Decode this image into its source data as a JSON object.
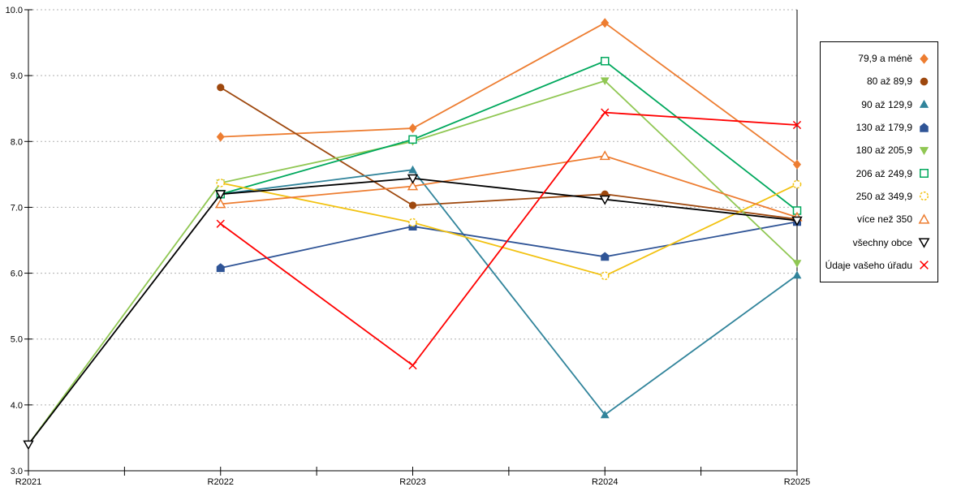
{
  "chart_data": {
    "type": "line",
    "title": "",
    "xlabel": "",
    "ylabel": "",
    "x_categories": [
      "R2021",
      "R2022",
      "R2023",
      "R2024",
      "R2025"
    ],
    "ylim": [
      3.0,
      10.0
    ],
    "y_tick_step": 1.0,
    "y_tick_labels": [
      "3.0",
      "4.0",
      "5.0",
      "6.0",
      "7.0",
      "8.0",
      "9.0",
      "10.0"
    ],
    "grid": "horizontal-dashed",
    "grid_color": "#B0B0B0",
    "axis_color": "#000000",
    "legend_position": "right-box",
    "series": [
      {
        "name": "79,9 a méně",
        "color": "#ED7D31",
        "marker": "diamond",
        "fill": "solid",
        "values": [
          null,
          8.07,
          8.2,
          9.8,
          7.65
        ]
      },
      {
        "name": "80 až 89,9",
        "color": "#9E480E",
        "marker": "circle",
        "fill": "solid",
        "values": [
          null,
          8.82,
          7.03,
          7.2,
          6.82
        ]
      },
      {
        "name": "90 až 129,9",
        "color": "#31849B",
        "marker": "triangle-up",
        "fill": "solid",
        "values": [
          null,
          7.2,
          7.57,
          3.85,
          5.97
        ]
      },
      {
        "name": "130 až 179,9",
        "color": "#2F5496",
        "marker": "pentagon",
        "fill": "solid",
        "values": [
          null,
          6.08,
          6.71,
          6.25,
          6.78
        ]
      },
      {
        "name": "180 až 205,9",
        "color": "#90C753",
        "marker": "triangle-down",
        "fill": "solid",
        "values": [
          3.4,
          7.37,
          8.0,
          8.92,
          6.15
        ]
      },
      {
        "name": "206 až 249,9",
        "color": "#00A85D",
        "marker": "square",
        "fill": "open",
        "values": [
          null,
          7.2,
          8.03,
          9.22,
          6.95
        ]
      },
      {
        "name": "250 až 349,9",
        "color": "#F2C211",
        "marker": "circle",
        "fill": "open-dashed",
        "values": [
          null,
          7.37,
          6.77,
          5.96,
          7.35
        ]
      },
      {
        "name": "více než 350",
        "color": "#ED7D31",
        "marker": "triangle-up",
        "fill": "open",
        "values": [
          null,
          7.05,
          7.32,
          7.78,
          6.85
        ]
      },
      {
        "name": "všechny obce",
        "color": "#000000",
        "marker": "triangle-down",
        "fill": "open",
        "values": [
          3.4,
          7.2,
          7.44,
          7.12,
          6.8
        ]
      },
      {
        "name": "Údaje vašeho úřadu",
        "color": "#FF0000",
        "marker": "x",
        "fill": "line",
        "values": [
          null,
          6.75,
          4.6,
          8.44,
          8.25
        ]
      }
    ]
  }
}
